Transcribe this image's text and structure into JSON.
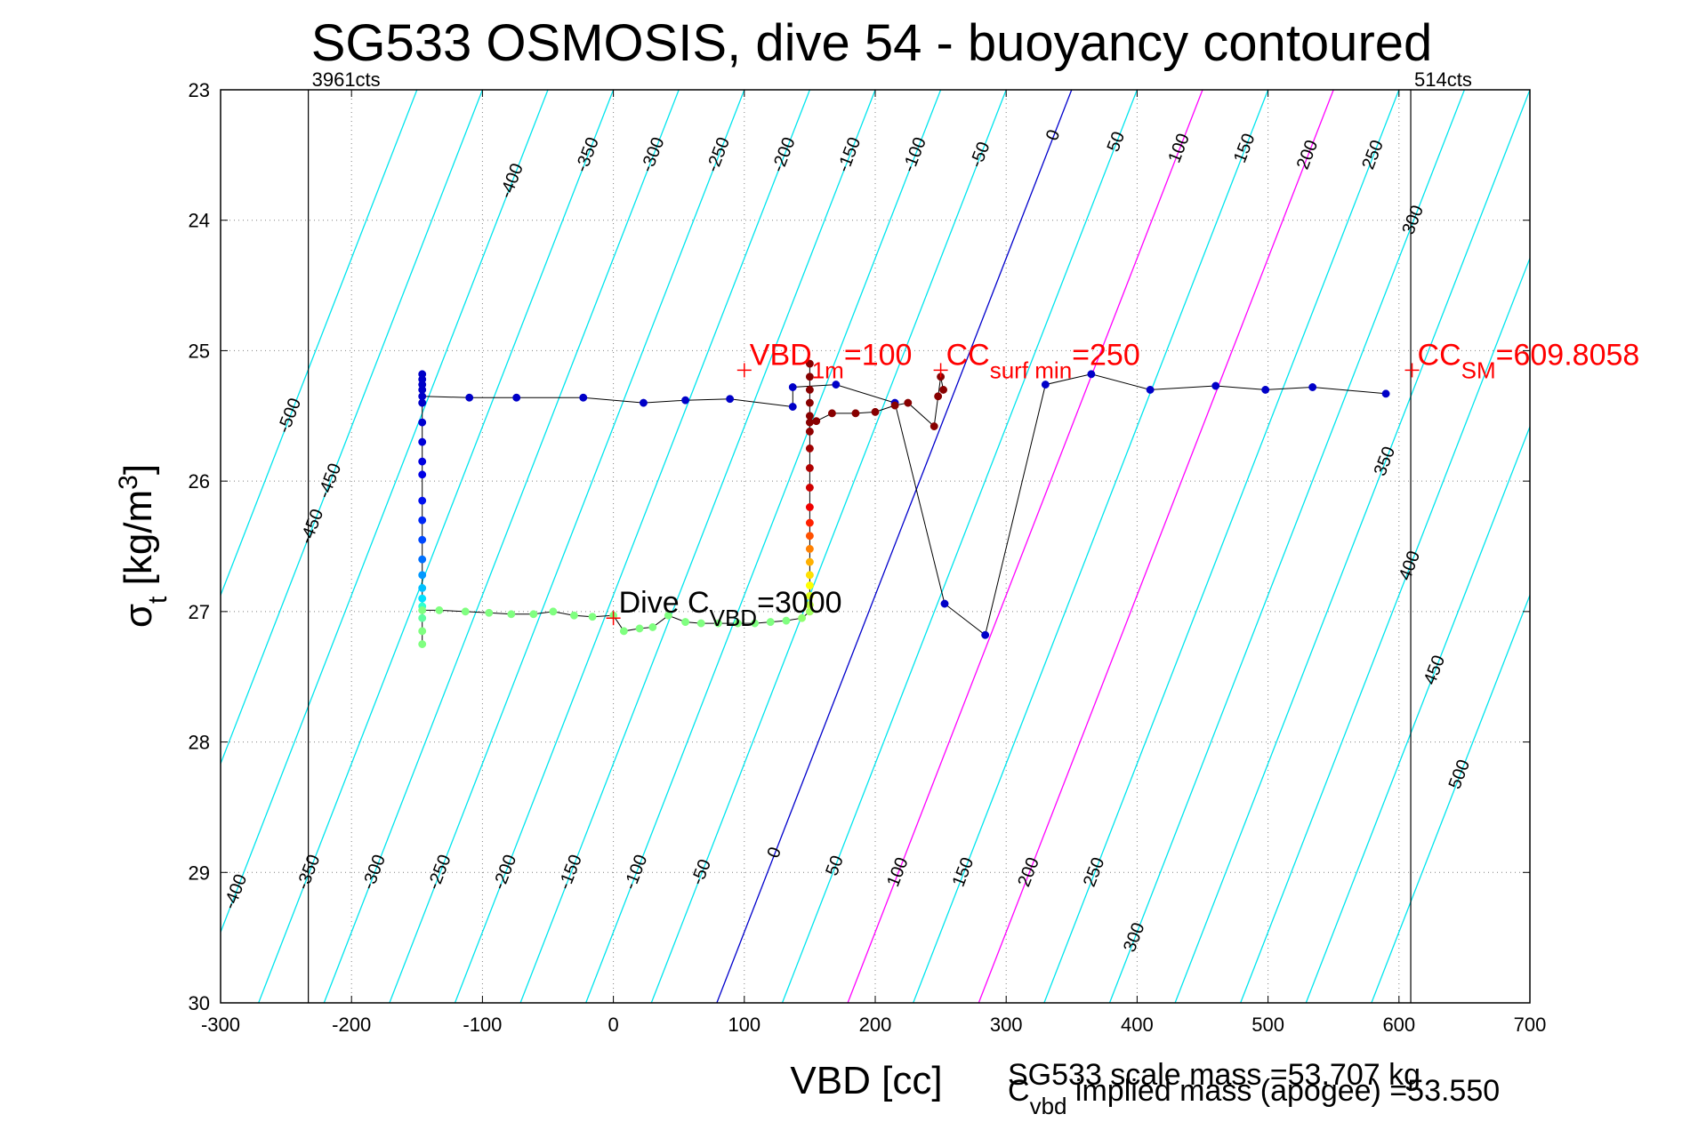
{
  "chart_data": {
    "type": "scatter",
    "title": "SG533 OSMOSIS, dive 54 - buoyancy contoured",
    "xlabel": "VBD [cc]",
    "ylabel": "σt [kg/m3]",
    "xlim": [
      -300,
      700
    ],
    "ylim": [
      23,
      30
    ],
    "y_reversed": true,
    "grid": true,
    "x_ticks": [
      -300,
      -200,
      -100,
      0,
      100,
      200,
      300,
      400,
      500,
      600,
      700
    ],
    "y_ticks": [
      23,
      24,
      25,
      26,
      27,
      28,
      29,
      30
    ],
    "x_tick_labels": [
      "-300",
      "-200",
      "-100",
      "0",
      "100",
      "200",
      "300",
      "400",
      "500",
      "600",
      "700"
    ],
    "y_tick_labels": [
      "23",
      "24",
      "25",
      "26",
      "27",
      "28",
      "29",
      "30"
    ],
    "vertical_lines": [
      {
        "x": -233,
        "label": "3961cts"
      },
      {
        "x": 609,
        "label": "514cts"
      }
    ],
    "buoyancy_contours": {
      "levels": [
        -500,
        -450,
        -400,
        -350,
        -300,
        -250,
        -200,
        -150,
        -100,
        -50,
        0,
        50,
        100,
        150,
        200,
        250,
        300,
        350,
        400,
        450,
        500
      ],
      "zero_x_at_top": 350,
      "zero_x_at_bottom": 79,
      "spacing_cc": 50,
      "colors": {
        "default": "#00e5ee",
        "zero": "#0000cc",
        "magenta": "#ff00ff"
      },
      "magenta_levels": [
        100,
        200
      ],
      "labels_top": [
        {
          "text": "-500",
          "level": -500,
          "y": 25.5
        },
        {
          "text": "-450",
          "level": -450,
          "y": 26.0
        },
        {
          "text": "-400",
          "level": -400,
          "y": 23.7
        },
        {
          "text": "-350",
          "level": -350,
          "y": 23.5
        },
        {
          "text": "-300",
          "level": -300,
          "y": 23.5
        },
        {
          "text": "-250",
          "level": -250,
          "y": 23.5
        },
        {
          "text": "-200",
          "level": -200,
          "y": 23.5
        },
        {
          "text": "-150",
          "level": -150,
          "y": 23.5
        },
        {
          "text": "-100",
          "level": -100,
          "y": 23.5
        },
        {
          "text": "-50",
          "level": -50,
          "y": 23.5
        },
        {
          "text": "0",
          "level": 0,
          "y": 23.35
        },
        {
          "text": "50",
          "level": 50,
          "y": 23.4
        },
        {
          "text": "100",
          "level": 100,
          "y": 23.45
        },
        {
          "text": "150",
          "level": 150,
          "y": 23.45
        },
        {
          "text": "200",
          "level": 200,
          "y": 23.5
        },
        {
          "text": "250",
          "level": 250,
          "y": 23.5
        },
        {
          "text": "300",
          "level": 300,
          "y": 24.0
        },
        {
          "text": "350",
          "level": 350,
          "y": 25.85
        },
        {
          "text": "400",
          "level": 400,
          "y": 26.65
        },
        {
          "text": "450",
          "level": 450,
          "y": 27.45
        },
        {
          "text": "500",
          "level": 500,
          "y": 28.25
        }
      ],
      "labels_bottom": [
        {
          "text": "-450",
          "level": -450,
          "y": 26.35
        },
        {
          "text": "-400",
          "level": -400,
          "y": 29.15
        },
        {
          "text": "-350",
          "level": -350,
          "y": 29.0
        },
        {
          "text": "-300",
          "level": -300,
          "y": 29.0
        },
        {
          "text": "-250",
          "level": -250,
          "y": 29.0
        },
        {
          "text": "-200",
          "level": -200,
          "y": 29.0
        },
        {
          "text": "-150",
          "level": -150,
          "y": 29.0
        },
        {
          "text": "-100",
          "level": -100,
          "y": 29.0
        },
        {
          "text": "-50",
          "level": -50,
          "y": 29.0
        },
        {
          "text": "0",
          "level": 0,
          "y": 28.85
        },
        {
          "text": "50",
          "level": 50,
          "y": 28.95
        },
        {
          "text": "100",
          "level": 100,
          "y": 29.0
        },
        {
          "text": "150",
          "level": 150,
          "y": 29.0
        },
        {
          "text": "200",
          "level": 200,
          "y": 29.0
        },
        {
          "text": "250",
          "level": 250,
          "y": 29.0
        },
        {
          "text": "300",
          "level": 300,
          "y": 29.5
        }
      ]
    },
    "series": [
      {
        "name": "dive_track",
        "color": "#000000",
        "points": [
          {
            "x": -146,
            "y": 25.18,
            "c": "#0000c8"
          },
          {
            "x": -146,
            "y": 25.22,
            "c": "#0000c8"
          },
          {
            "x": -146,
            "y": 25.26,
            "c": "#0000c8"
          },
          {
            "x": -146,
            "y": 25.3,
            "c": "#0000c8"
          },
          {
            "x": -146,
            "y": 25.35,
            "c": "#0000c8"
          },
          {
            "x": -110,
            "y": 25.36,
            "c": "#0000c8"
          },
          {
            "x": -74,
            "y": 25.36,
            "c": "#0000c8"
          },
          {
            "x": -23,
            "y": 25.36,
            "c": "#0000c8"
          },
          {
            "x": 23,
            "y": 25.4,
            "c": "#0000c8"
          },
          {
            "x": 55,
            "y": 25.38,
            "c": "#0000c8"
          },
          {
            "x": 89,
            "y": 25.37,
            "c": "#0000c8"
          },
          {
            "x": 137,
            "y": 25.43,
            "c": "#0000c8"
          },
          {
            "x": 137,
            "y": 25.28,
            "c": "#0000c8"
          },
          {
            "x": 170,
            "y": 25.26,
            "c": "#0000c8"
          },
          {
            "x": 215,
            "y": 25.4,
            "c": "#0000c8"
          },
          {
            "x": 253,
            "y": 26.94,
            "c": "#0000c8"
          },
          {
            "x": 284,
            "y": 27.18,
            "c": "#0000c8"
          },
          {
            "x": 330,
            "y": 25.26,
            "c": "#0000c8"
          },
          {
            "x": 365,
            "y": 25.18,
            "c": "#0000c8"
          },
          {
            "x": 410,
            "y": 25.3,
            "c": "#0000c8"
          },
          {
            "x": 460,
            "y": 25.27,
            "c": "#0000c8"
          },
          {
            "x": 498,
            "y": 25.3,
            "c": "#0000c8"
          },
          {
            "x": 534,
            "y": 25.28,
            "c": "#0000c8"
          },
          {
            "x": 590,
            "y": 25.33,
            "c": "#0000c8"
          }
        ]
      },
      {
        "name": "descent_column",
        "color": "#000000",
        "points": [
          {
            "x": -146,
            "y": 25.4,
            "c": "#0000c8"
          },
          {
            "x": -146,
            "y": 25.55,
            "c": "#0000d0"
          },
          {
            "x": -146,
            "y": 25.7,
            "c": "#0000d8"
          },
          {
            "x": -146,
            "y": 25.85,
            "c": "#0000e0"
          },
          {
            "x": -146,
            "y": 25.95,
            "c": "#0000e6"
          },
          {
            "x": -146,
            "y": 26.15,
            "c": "#0010f0"
          },
          {
            "x": -146,
            "y": 26.3,
            "c": "#0028f8"
          },
          {
            "x": -146,
            "y": 26.45,
            "c": "#0048ff"
          },
          {
            "x": -146,
            "y": 26.6,
            "c": "#0070ff"
          },
          {
            "x": -146,
            "y": 26.72,
            "c": "#0098ff"
          },
          {
            "x": -146,
            "y": 26.82,
            "c": "#00c0ff"
          },
          {
            "x": -146,
            "y": 26.9,
            "c": "#00e0ff"
          },
          {
            "x": -146,
            "y": 26.96,
            "c": "#30ffd0"
          },
          {
            "x": -146,
            "y": 27.05,
            "c": "#60ffa0"
          },
          {
            "x": -146,
            "y": 27.15,
            "c": "#80ff80"
          },
          {
            "x": -146,
            "y": 27.25,
            "c": "#80ff80"
          }
        ]
      },
      {
        "name": "bottom_track",
        "color": "#000000",
        "points": [
          {
            "x": -146,
            "y": 26.99,
            "c": "#80ff80"
          },
          {
            "x": -133,
            "y": 26.99,
            "c": "#80ff80"
          },
          {
            "x": -113,
            "y": 27.0,
            "c": "#80ff80"
          },
          {
            "x": -95,
            "y": 27.01,
            "c": "#80ff80"
          },
          {
            "x": -78,
            "y": 27.02,
            "c": "#80ff80"
          },
          {
            "x": -61,
            "y": 27.02,
            "c": "#80ff80"
          },
          {
            "x": -46,
            "y": 27.0,
            "c": "#80ff80"
          },
          {
            "x": -30,
            "y": 27.03,
            "c": "#80ff80"
          },
          {
            "x": -16,
            "y": 27.04,
            "c": "#80ff80"
          },
          {
            "x": 0,
            "y": 27.03,
            "c": "#80ff80"
          },
          {
            "x": 8,
            "y": 27.15,
            "c": "#80ff80"
          },
          {
            "x": 20,
            "y": 27.13,
            "c": "#80ff80"
          },
          {
            "x": 30,
            "y": 27.12,
            "c": "#80ff80"
          },
          {
            "x": 42,
            "y": 27.03,
            "c": "#80ff80"
          },
          {
            "x": 55,
            "y": 27.08,
            "c": "#80ff80"
          },
          {
            "x": 67,
            "y": 27.09,
            "c": "#80ff80"
          },
          {
            "x": 80,
            "y": 27.09,
            "c": "#80ff80"
          },
          {
            "x": 95,
            "y": 27.09,
            "c": "#80ff80"
          },
          {
            "x": 108,
            "y": 27.09,
            "c": "#80ff80"
          },
          {
            "x": 120,
            "y": 27.08,
            "c": "#80ff80"
          },
          {
            "x": 132,
            "y": 27.07,
            "c": "#80ff80"
          },
          {
            "x": 144,
            "y": 27.05,
            "c": "#90ff70"
          },
          {
            "x": 150,
            "y": 27.0,
            "c": "#a0ff60"
          }
        ]
      },
      {
        "name": "ascent_column",
        "color": "#000000",
        "points": [
          {
            "x": 150,
            "y": 26.95,
            "c": "#c0ff40"
          },
          {
            "x": 150,
            "y": 26.88,
            "c": "#e0ff20"
          },
          {
            "x": 150,
            "y": 26.8,
            "c": "#ffff00"
          },
          {
            "x": 150,
            "y": 26.72,
            "c": "#ffe000"
          },
          {
            "x": 150,
            "y": 26.62,
            "c": "#ffb000"
          },
          {
            "x": 150,
            "y": 26.52,
            "c": "#ff8000"
          },
          {
            "x": 150,
            "y": 26.42,
            "c": "#ff5000"
          },
          {
            "x": 150,
            "y": 26.32,
            "c": "#ff2000"
          },
          {
            "x": 150,
            "y": 26.2,
            "c": "#f00000"
          },
          {
            "x": 150,
            "y": 26.05,
            "c": "#d00000"
          },
          {
            "x": 150,
            "y": 25.9,
            "c": "#b00000"
          },
          {
            "x": 150,
            "y": 25.75,
            "c": "#a00000"
          },
          {
            "x": 150,
            "y": 25.62,
            "c": "#900000"
          },
          {
            "x": 150,
            "y": 25.5,
            "c": "#880000"
          },
          {
            "x": 150,
            "y": 25.4,
            "c": "#880000"
          },
          {
            "x": 150,
            "y": 25.3,
            "c": "#880000"
          },
          {
            "x": 150,
            "y": 25.2,
            "c": "#880000"
          },
          {
            "x": 150,
            "y": 25.1,
            "c": "#880000"
          }
        ]
      },
      {
        "name": "ascent_top",
        "color": "#000000",
        "points": [
          {
            "x": 150,
            "y": 25.55,
            "c": "#880000"
          },
          {
            "x": 155,
            "y": 25.54,
            "c": "#880000"
          },
          {
            "x": 167,
            "y": 25.48,
            "c": "#880000"
          },
          {
            "x": 185,
            "y": 25.48,
            "c": "#880000"
          },
          {
            "x": 200,
            "y": 25.47,
            "c": "#880000"
          },
          {
            "x": 215,
            "y": 25.42,
            "c": "#880000"
          },
          {
            "x": 225,
            "y": 25.4,
            "c": "#880000"
          },
          {
            "x": 245,
            "y": 25.58,
            "c": "#880000"
          },
          {
            "x": 248,
            "y": 25.35,
            "c": "#880000"
          },
          {
            "x": 250,
            "y": 25.2,
            "c": "#880000"
          },
          {
            "x": 252,
            "y": 25.3,
            "c": "#880000"
          }
        ]
      }
    ],
    "annotations": [
      {
        "x": 100,
        "y": 25.15,
        "marker_color": "#ff0000",
        "main": "VBD",
        "sub": "1m",
        "tail": "=100",
        "color": "#ff0000"
      },
      {
        "x": 250,
        "y": 25.15,
        "marker_color": "#ff0000",
        "main": "CC",
        "sub": "surf min",
        "tail": "=250",
        "color": "#ff0000"
      },
      {
        "x": 610,
        "y": 25.15,
        "marker_color": "#ff0000",
        "main": "CC",
        "sub": "SM",
        "tail": "=609.8058",
        "color": "#ff0000"
      },
      {
        "x": 0,
        "y": 27.05,
        "marker_color": "#ff0000",
        "main": "Dive C",
        "sub": "VBD",
        "tail": "=3000",
        "color": "#000000"
      }
    ],
    "notes": {
      "scale_mass": "SG533 scale mass =53.707 kg",
      "implied_mass_main": "C",
      "implied_mass_sub": "vbd",
      "implied_mass_tail": " implied mass (apogee) =53.550"
    }
  }
}
